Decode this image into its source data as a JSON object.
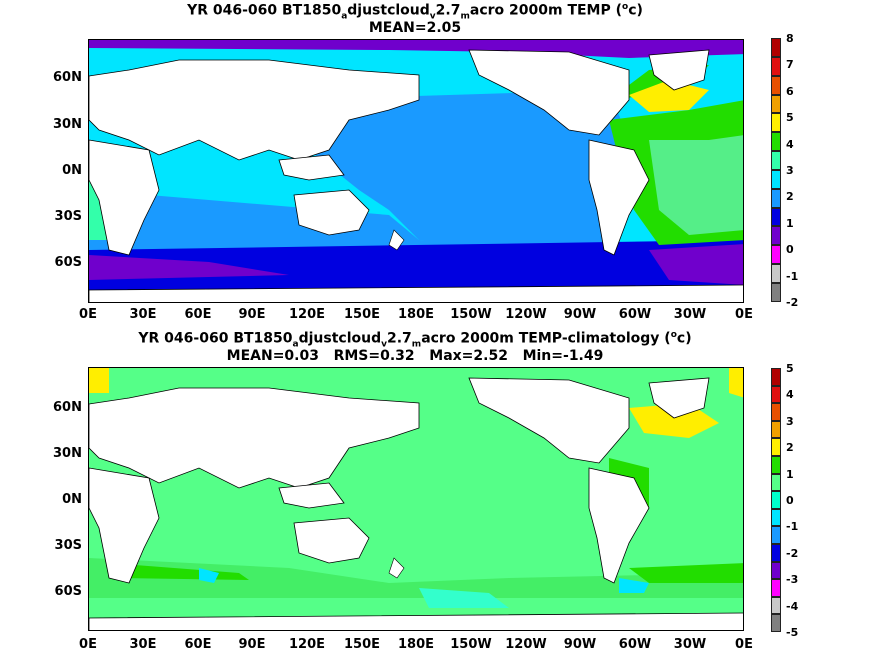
{
  "top_panel": {
    "title_parts": [
      "YR 046-060 BT1850",
      "a",
      "djustcloud",
      "v",
      "2.7",
      "m",
      "acro 2000m TEMP (",
      "o",
      "c)"
    ],
    "stats": "MEAN=2.05",
    "colorbar_labels": [
      "8",
      "7",
      "6",
      "5",
      "4",
      "3",
      "2",
      "1",
      "0",
      "-1",
      "-2"
    ],
    "colorbar_colors": [
      "#b00000",
      "#e01010",
      "#e85000",
      "#f0a000",
      "#ffee00",
      "#22dd00",
      "#33ffaa",
      "#00e5ff",
      "#1a9aff",
      "#0000e0",
      "#7000cc",
      "#ff00ff",
      "#c8c8c8",
      "#808080"
    ]
  },
  "bottom_panel": {
    "title_parts": [
      "YR 046-060 BT1850",
      "a",
      "djustcloud",
      "v",
      "2.7",
      "m",
      "acro 2000m TEMP-climatology (",
      "o",
      "c)"
    ],
    "stats": "MEAN=0.03   RMS=0.32   Max=2.52   Min=-1.49",
    "colorbar_labels": [
      "5",
      "4",
      "3",
      "2",
      "1",
      "0",
      "-1",
      "-2",
      "-3",
      "-4",
      "-5"
    ],
    "colorbar_colors": [
      "#b00000",
      "#e01010",
      "#e85000",
      "#f0a000",
      "#ffee00",
      "#22dd00",
      "#55ff88",
      "#00ffcc",
      "#00e5ff",
      "#1a9aff",
      "#0000e0",
      "#7000cc",
      "#ff00ff",
      "#c8c8c8",
      "#808080"
    ]
  },
  "lat_labels": [
    "60N",
    "30N",
    "0N",
    "30S",
    "60S"
  ],
  "lon_labels": [
    "0E",
    "30E",
    "60E",
    "90E",
    "120E",
    "150E",
    "180E",
    "150W",
    "120W",
    "90W",
    "60W",
    "30W",
    "0E"
  ]
}
